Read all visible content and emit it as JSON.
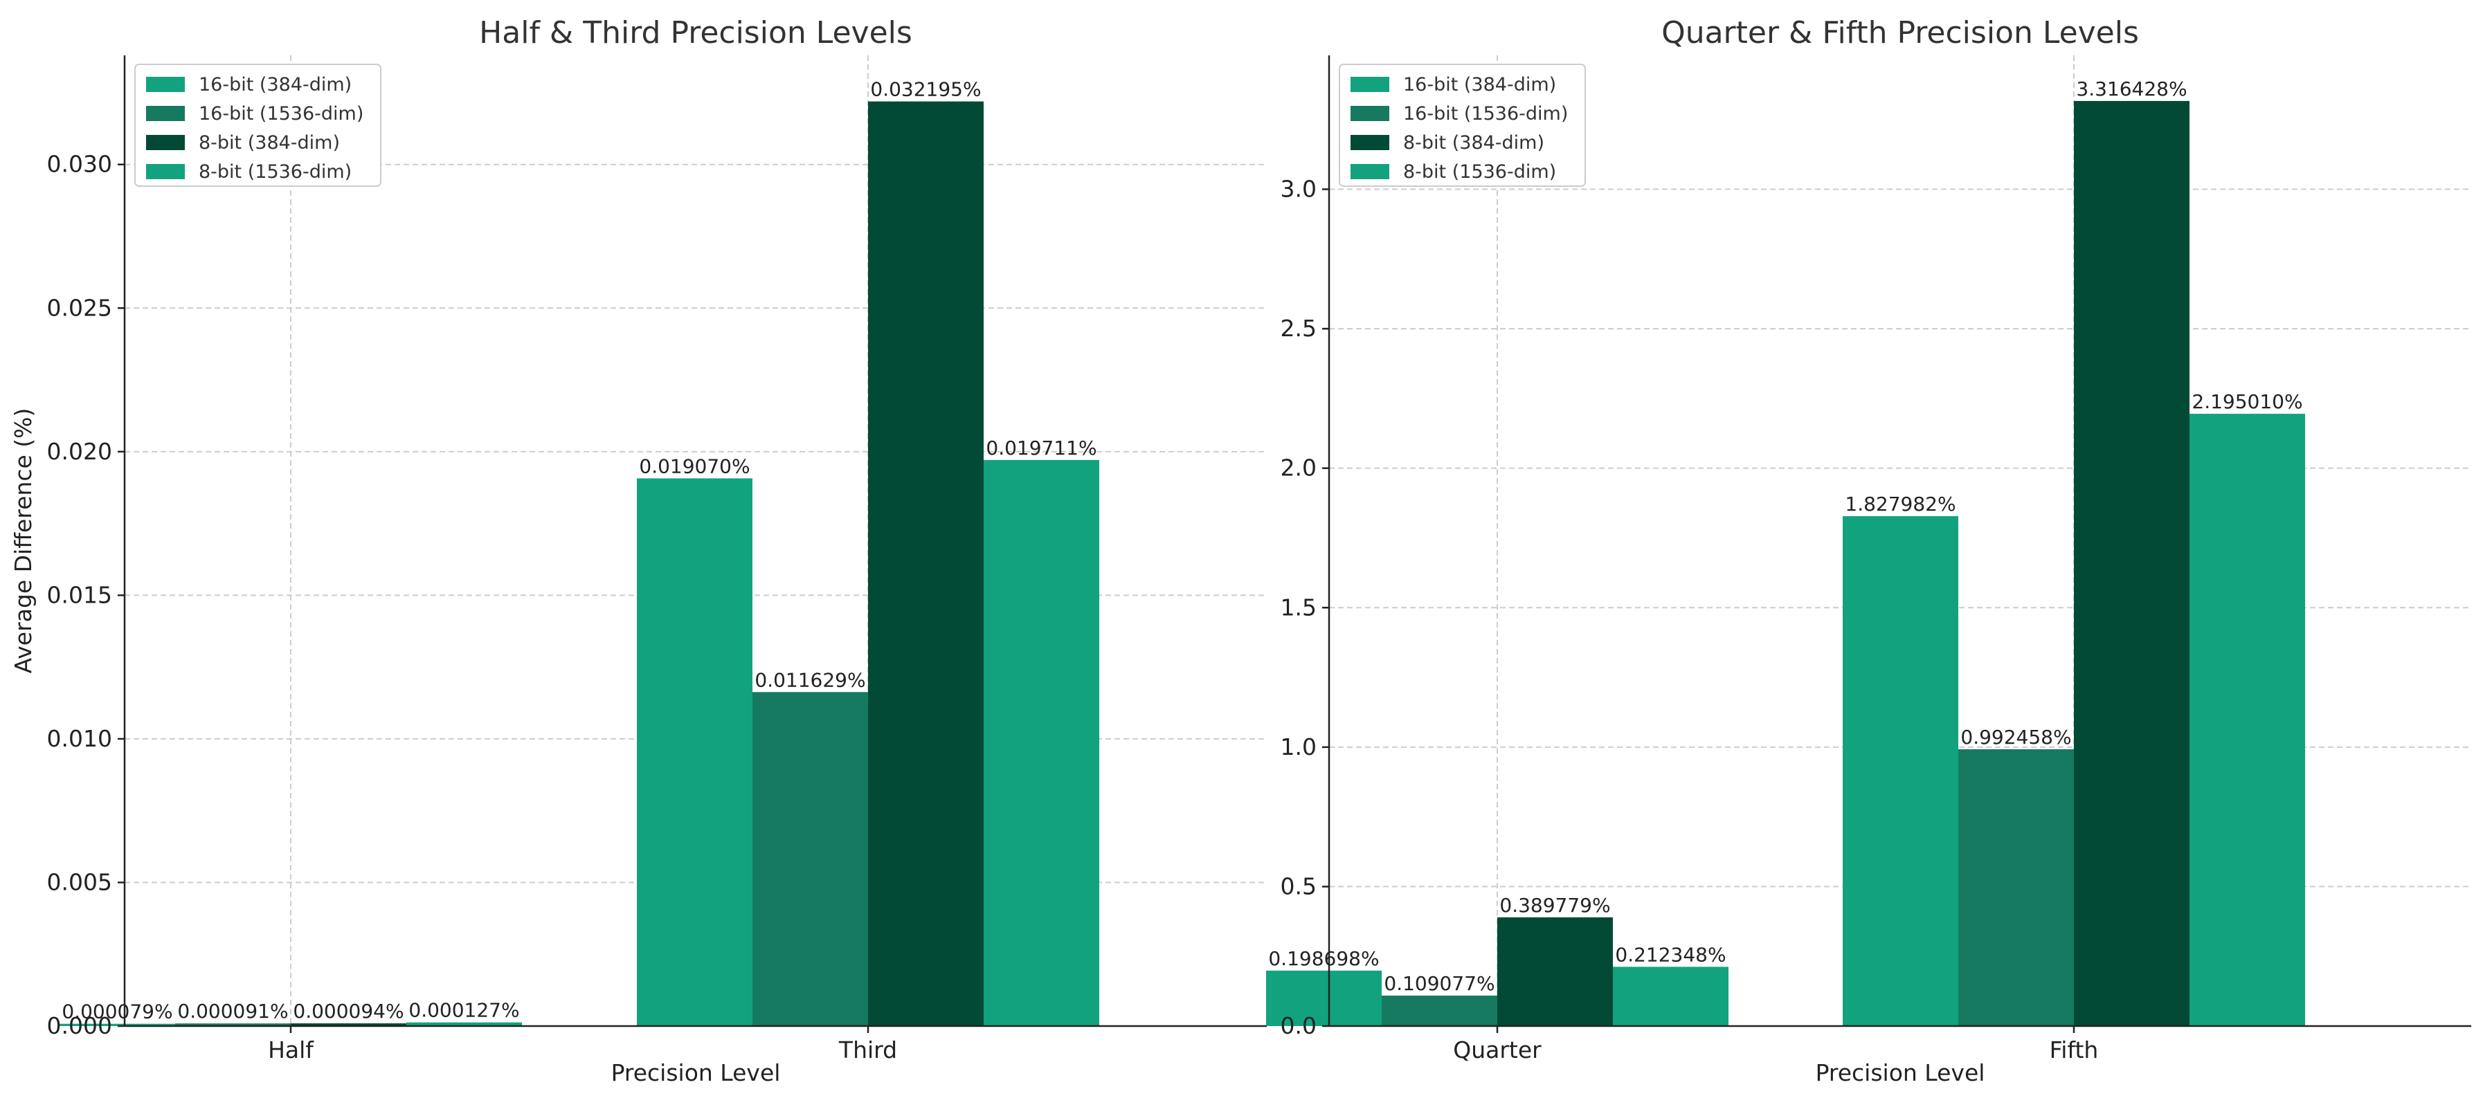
{
  "chart_data": [
    {
      "type": "bar",
      "title": "Half & Third Precision Levels",
      "xlabel": "Precision Level",
      "ylabel": "Average Difference (%)",
      "categories": [
        "Half",
        "Third"
      ],
      "ylim": [
        0,
        0.0338
      ],
      "yticks": [
        0.0,
        0.005,
        0.01,
        0.015,
        0.02,
        0.025,
        0.03
      ],
      "ytick_labels": [
        "0.000",
        "0.005",
        "0.010",
        "0.015",
        "0.020",
        "0.025",
        "0.030"
      ],
      "grid": true,
      "legend_position": "top-left",
      "series": [
        {
          "name": "16-bit (384-dim)",
          "color": "#12a37e",
          "values": [
            7.9e-05,
            0.01907
          ],
          "labels": [
            "0.000079%",
            "0.019070%"
          ]
        },
        {
          "name": "16-bit (1536-dim)",
          "color": "#157a60",
          "values": [
            9.1e-05,
            0.011629
          ],
          "labels": [
            "0.000091%",
            "0.011629%"
          ]
        },
        {
          "name": "8-bit (384-dim)",
          "color": "#034a36",
          "values": [
            9.4e-05,
            0.032195
          ],
          "labels": [
            "0.000094%",
            "0.032195%"
          ]
        },
        {
          "name": "8-bit (1536-dim)",
          "color": "#12a37e",
          "values": [
            0.000127,
            0.019711
          ],
          "labels": [
            "0.000127%",
            "0.019711%"
          ]
        }
      ]
    },
    {
      "type": "bar",
      "title": "Quarter & Fifth Precision Levels",
      "xlabel": "Precision Level",
      "ylabel": "",
      "categories": [
        "Quarter",
        "Fifth"
      ],
      "ylim": [
        0,
        3.48
      ],
      "yticks": [
        0.0,
        0.5,
        1.0,
        1.5,
        2.0,
        2.5,
        3.0
      ],
      "ytick_labels": [
        "0.0",
        "0.5",
        "1.0",
        "1.5",
        "2.0",
        "2.5",
        "3.0"
      ],
      "grid": true,
      "legend_position": "top-left",
      "series": [
        {
          "name": "16-bit (384-dim)",
          "color": "#12a37e",
          "values": [
            0.198698,
            1.827982
          ],
          "labels": [
            "0.198698%",
            "1.827982%"
          ]
        },
        {
          "name": "16-bit (1536-dim)",
          "color": "#157a60",
          "values": [
            0.109077,
            0.992458
          ],
          "labels": [
            "0.109077%",
            "0.992458%"
          ]
        },
        {
          "name": "8-bit (384-dim)",
          "color": "#034a36",
          "values": [
            0.389779,
            3.316428
          ],
          "labels": [
            "0.389779%",
            "3.316428%"
          ]
        },
        {
          "name": "8-bit (1536-dim)",
          "color": "#12a37e",
          "values": [
            0.212348,
            2.19501
          ],
          "labels": [
            "0.212348%",
            "2.195010%"
          ]
        }
      ]
    }
  ]
}
